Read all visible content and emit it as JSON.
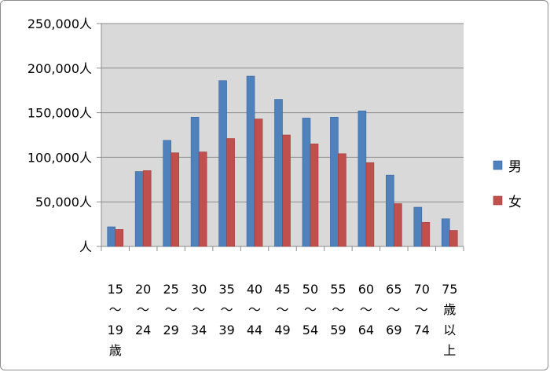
{
  "chart_data": {
    "type": "bar",
    "ytick_labels": [
      "人",
      "50,000人",
      "100,000人",
      "150,000人",
      "200,000人",
      "250,000人"
    ],
    "ylim": [
      0,
      250000
    ],
    "ytick_values": [
      0,
      50000,
      100000,
      150000,
      200000,
      250000
    ],
    "categories": [
      [
        "15",
        "～",
        "19",
        "歳"
      ],
      [
        "20",
        "～",
        "24"
      ],
      [
        "25",
        "～",
        "29"
      ],
      [
        "30",
        "～",
        "34"
      ],
      [
        "35",
        "～",
        "39"
      ],
      [
        "40",
        "～",
        "44"
      ],
      [
        "45",
        "～",
        "49"
      ],
      [
        "50",
        "～",
        "54"
      ],
      [
        "55",
        "～",
        "59"
      ],
      [
        "60",
        "～",
        "64"
      ],
      [
        "65",
        "～",
        "69"
      ],
      [
        "70",
        "～",
        "74"
      ],
      [
        "75",
        "歳",
        "以",
        "上"
      ]
    ],
    "series": [
      {
        "name": "男",
        "color": "#4f81bd",
        "values": [
          22000,
          84000,
          119000,
          145000,
          186000,
          191000,
          165000,
          144000,
          145000,
          152000,
          80000,
          44000,
          31000
        ]
      },
      {
        "name": "女",
        "color": "#c0504d",
        "values": [
          19000,
          85000,
          105000,
          106000,
          121000,
          143000,
          125000,
          115000,
          104000,
          94000,
          48000,
          27000,
          18000
        ]
      }
    ],
    "grid": true,
    "legend_position": "right",
    "plot_background": "#d9d9d9"
  }
}
